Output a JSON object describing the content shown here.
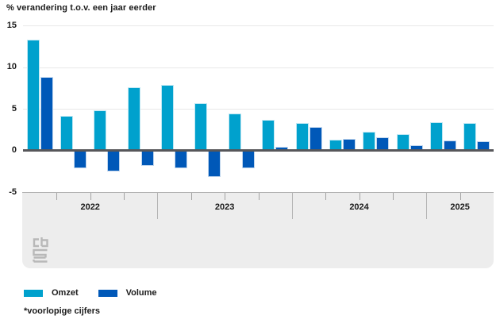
{
  "title": "% verandering t.o.v. een jaar eerder",
  "footnote": "*voorlopige cijfers",
  "legend": {
    "items": [
      {
        "label": "Omzet",
        "color": "#00a1cd"
      },
      {
        "label": "Volume",
        "color": "#0058b8"
      }
    ]
  },
  "logo": {
    "name": "cbs-logo",
    "color": "#b8b8b8"
  },
  "colors": {
    "omzet": "#00a1cd",
    "volume": "#0058b8",
    "zero_line": "#57575a",
    "gridline": "#e8e8e8",
    "band_background": "#ededed",
    "text": "#1b1b1b"
  },
  "chart_data": {
    "type": "bar",
    "title": "% verandering t.o.v. een jaar eerder",
    "xlabel": "",
    "ylabel": "% verandering t.o.v. een jaar eerder",
    "ylim": [
      -5,
      15
    ],
    "yticks": [
      15,
      10,
      5,
      0,
      -5
    ],
    "grid": true,
    "legend_position": "bottom",
    "categories": [
      "2022 Q1",
      "2022 Q2",
      "2022 Q3",
      "2022 Q4",
      "2023 Q1",
      "2023 Q2",
      "2023 Q3",
      "2023 Q4",
      "2024 Q1",
      "2024 Q2",
      "2024 Q3",
      "2024 Q4",
      "2025 Q1",
      "2025 Q2"
    ],
    "x_axis_years": [
      {
        "label": "2022",
        "quarters": 4
      },
      {
        "label": "2023",
        "quarters": 4
      },
      {
        "label": "2024",
        "quarters": 4
      },
      {
        "label": "2025",
        "quarters": 2
      }
    ],
    "series": [
      {
        "name": "Omzet",
        "color": "#00a1cd",
        "values": [
          13.3,
          4.1,
          4.8,
          7.6,
          7.9,
          5.7,
          4.4,
          3.7,
          3.3,
          1.3,
          2.2,
          2.0,
          3.4,
          3.3
        ]
      },
      {
        "name": "Volume",
        "color": "#0058b8",
        "values": [
          8.8,
          -2.1,
          -2.5,
          -1.9,
          -2.1,
          -3.2,
          -2.1,
          0.4,
          2.8,
          1.4,
          1.6,
          0.6,
          1.2,
          1.1
        ]
      }
    ]
  }
}
